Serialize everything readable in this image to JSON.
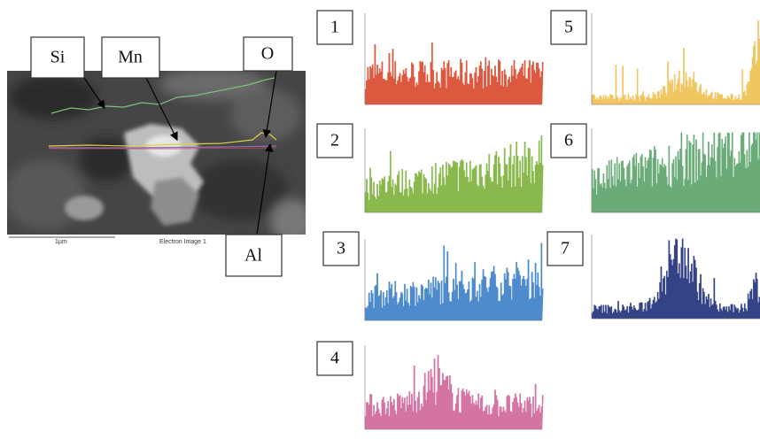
{
  "elements": [
    "Si",
    "Mn",
    "O",
    "Al"
  ],
  "image": {
    "scale_label": "1μm",
    "caption": "Electron Image 1"
  },
  "panels": [
    "1",
    "2",
    "3",
    "4",
    "5",
    "6",
    "7"
  ]
}
